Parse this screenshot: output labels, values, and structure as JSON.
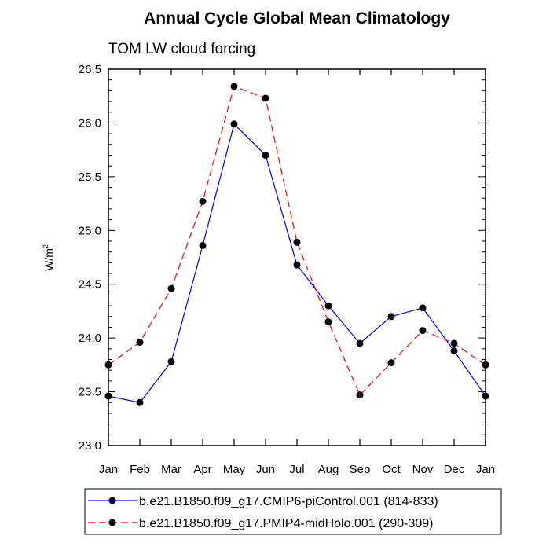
{
  "chart_data": {
    "type": "line",
    "title": "Annual Cycle Global Mean Climatology",
    "subtitle": "TOM LW cloud forcing",
    "ylabel_base": "W/m",
    "ylabel_sup": "2",
    "xlabel": "",
    "categories": [
      "Jan",
      "Feb",
      "Mar",
      "Apr",
      "May",
      "Jun",
      "Jul",
      "Aug",
      "Sep",
      "Oct",
      "Nov",
      "Dec",
      "Jan"
    ],
    "ylim": [
      23.0,
      26.5
    ],
    "yticks": [
      "23.0",
      "23.5",
      "24.0",
      "24.5",
      "25.0",
      "25.5",
      "26.0",
      "26.5"
    ],
    "series": [
      {
        "name": "b.e21.B1850.f09_g17.CMIP6-piControl.001 (814-833)",
        "color": "#0000ff",
        "dash": "solid",
        "values": [
          23.46,
          23.4,
          23.78,
          24.86,
          25.99,
          25.7,
          24.68,
          24.3,
          23.95,
          24.2,
          24.28,
          23.88,
          23.46
        ]
      },
      {
        "name": "b.e21.B1850.f09_g17.PMIP4-midHolo.001 (290-309)",
        "color": "#ff0000",
        "dash": "dashed",
        "values": [
          23.75,
          23.96,
          24.46,
          25.27,
          26.34,
          26.23,
          24.89,
          24.15,
          23.47,
          23.77,
          24.07,
          23.95,
          23.75
        ]
      }
    ],
    "legend_position": "bottom"
  }
}
